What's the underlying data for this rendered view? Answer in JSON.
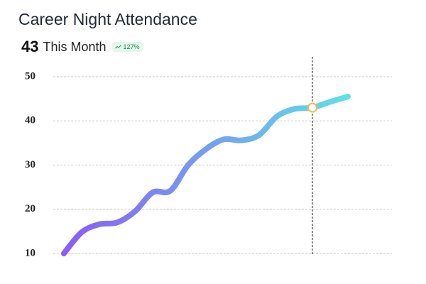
{
  "title": "Career Night Attendance",
  "current_value": 43,
  "current_label": "This Month",
  "change": "127%",
  "chart_data": {
    "type": "line",
    "categories": [
      null,
      null,
      null,
      null,
      null,
      null,
      null,
      null,
      null,
      null,
      null,
      null,
      null,
      null,
      null,
      null,
      null
    ],
    "series": [
      {
        "values": [
          10,
          14.8,
          16.6,
          17,
          19.5,
          23.8,
          24.2,
          30,
          33.6,
          35.8,
          35.6,
          36.8,
          41,
          42.7,
          43,
          44.3,
          45.5
        ],
        "colors": [
          "#8b5cf6",
          "#5fe0e6"
        ]
      }
    ],
    "highlight_index": 14,
    "highlight_color": "#f2b84b",
    "ylim": [
      10,
      50
    ],
    "yticks": [
      10,
      20,
      30,
      40,
      50
    ],
    "grid": true
  }
}
